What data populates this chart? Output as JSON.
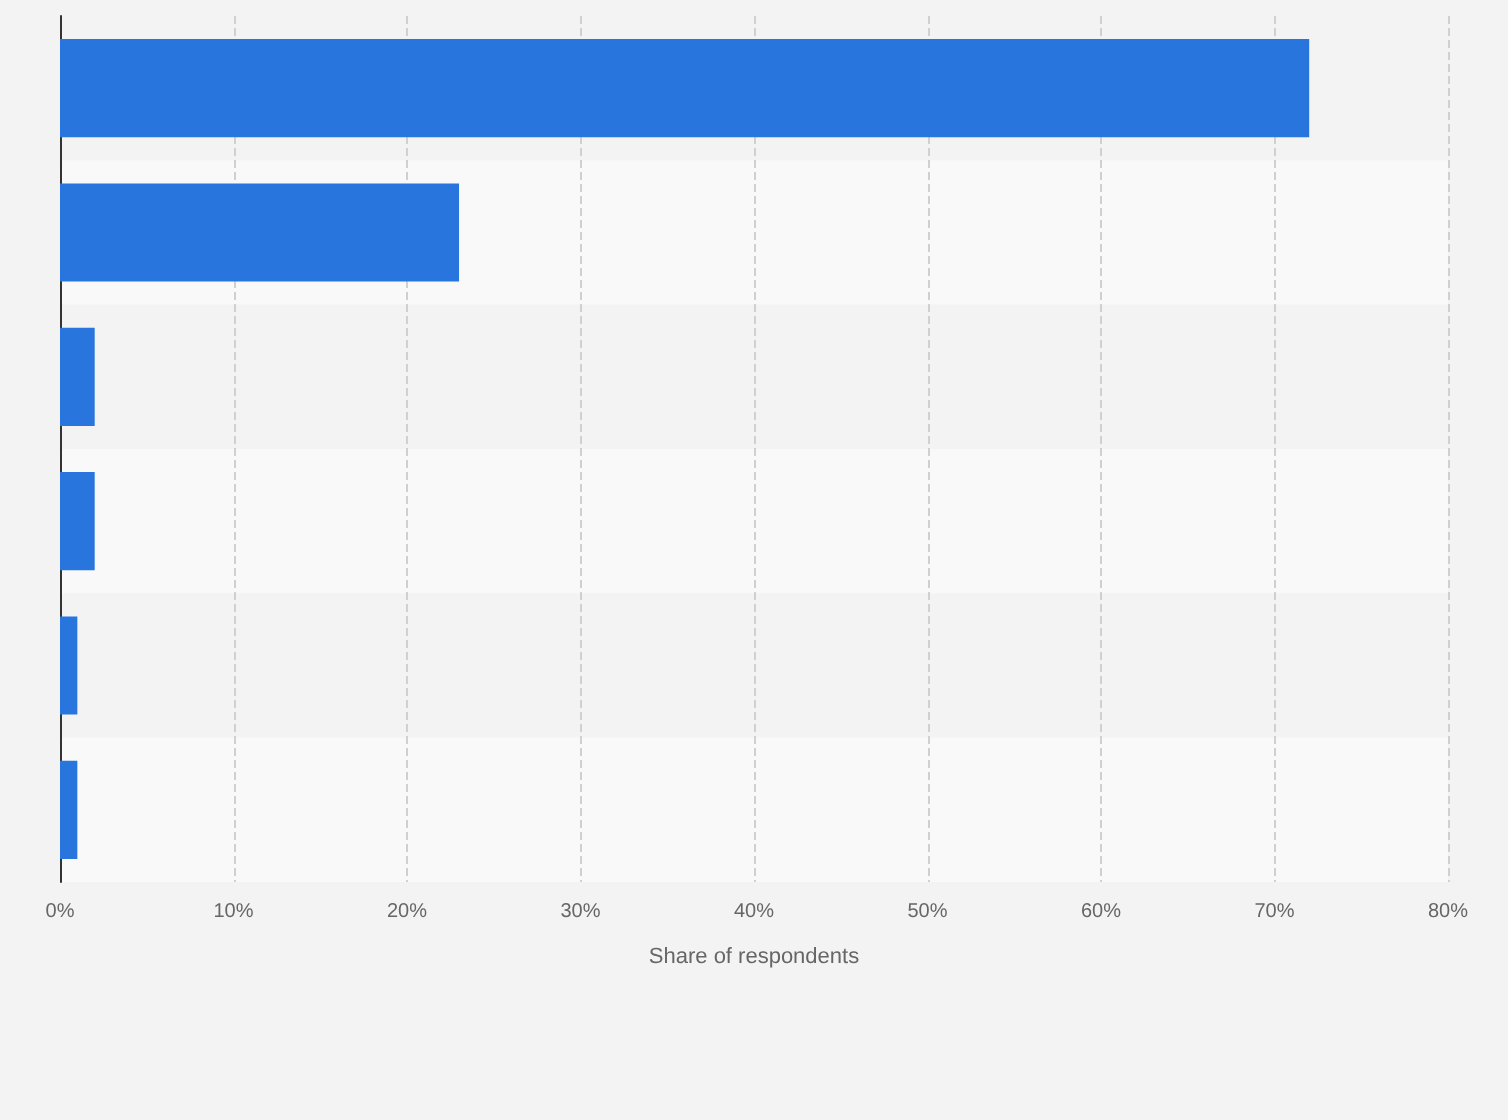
{
  "chart_data": {
    "type": "bar",
    "orientation": "horizontal",
    "xlabel": "Share of respondents",
    "categories": [
      null,
      null,
      null,
      null,
      null,
      null
    ],
    "values": [
      72,
      23,
      2,
      2,
      1,
      1
    ],
    "color": "#2876dd",
    "xlim": [
      0,
      80
    ],
    "xticks": [
      {
        "value": 0,
        "label": "0%"
      },
      {
        "value": 10,
        "label": "10%"
      },
      {
        "value": 20,
        "label": "20%"
      },
      {
        "value": 30,
        "label": "30%"
      },
      {
        "value": 40,
        "label": "40%"
      },
      {
        "value": 50,
        "label": "50%"
      },
      {
        "value": 60,
        "label": "60%"
      },
      {
        "value": 70,
        "label": "70%"
      },
      {
        "value": 80,
        "label": "80%"
      }
    ],
    "grid": "x",
    "tick_labels": "x"
  }
}
